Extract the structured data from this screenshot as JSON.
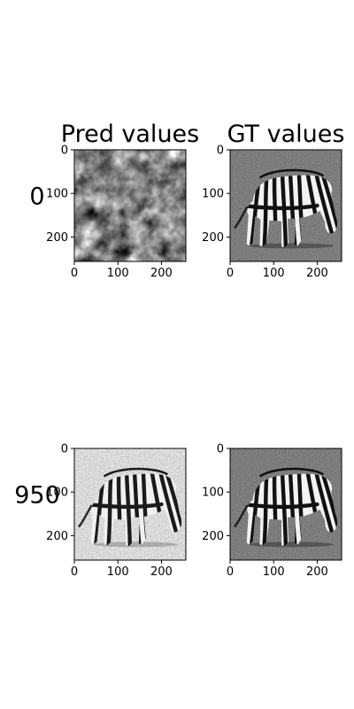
{
  "chart_data": [
    {
      "type": "heatmap",
      "column_title": "Pred values",
      "row_label": "0",
      "image": "pred-noise",
      "xticks": [
        0,
        100,
        200
      ],
      "yticks": [
        0,
        100,
        200
      ],
      "xlim": [
        0,
        256
      ],
      "ylim": [
        256,
        0
      ],
      "colormap": "gray"
    },
    {
      "type": "heatmap",
      "column_title": "GT values",
      "row_label": "",
      "image": "zebra-ground-truth",
      "xticks": [
        0,
        100,
        200
      ],
      "yticks": [
        0,
        100,
        200
      ],
      "xlim": [
        0,
        256
      ],
      "ylim": [
        256,
        0
      ],
      "colormap": "gray"
    },
    {
      "type": "heatmap",
      "column_title": "",
      "row_label": "950",
      "image": "zebra-prediction",
      "xticks": [
        0,
        100,
        200
      ],
      "yticks": [
        0,
        100,
        200
      ],
      "xlim": [
        0,
        256
      ],
      "ylim": [
        256,
        0
      ],
      "colormap": "gray"
    },
    {
      "type": "heatmap",
      "column_title": "",
      "row_label": "",
      "image": "zebra-ground-truth",
      "xticks": [
        0,
        100,
        200
      ],
      "yticks": [
        0,
        100,
        200
      ],
      "xlim": [
        0,
        256
      ],
      "ylim": [
        256,
        0
      ],
      "colormap": "gray"
    }
  ]
}
